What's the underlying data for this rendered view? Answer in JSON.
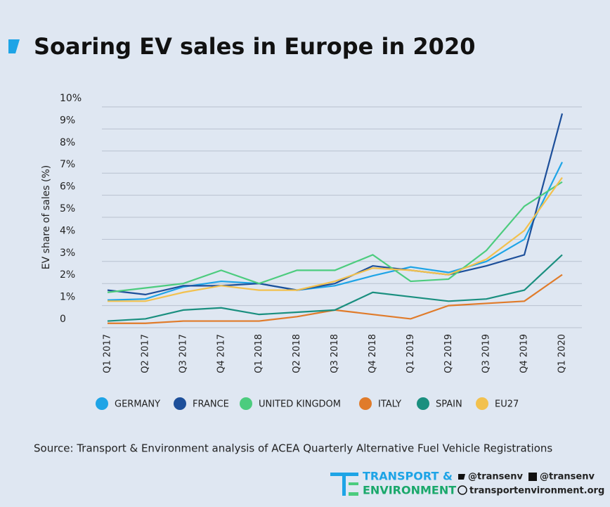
{
  "chart_data": {
    "type": "line",
    "title": "Soaring EV sales in Europe in 2020",
    "y_label": "EV share of sales (%)",
    "categories": [
      "Q1 2017",
      "Q2 2017",
      "Q3 2017",
      "Q4 2017",
      "Q1 2018",
      "Q2 2018",
      "Q3 2018",
      "Q4 2018",
      "Q1 2019",
      "Q2 2019",
      "Q3 2019",
      "Q4 2019",
      "Q1 2020"
    ],
    "series": [
      {
        "name": "GERMANY",
        "color": "#1ea4e6",
        "values": [
          1.25,
          1.3,
          1.85,
          2.1,
          2.0,
          1.7,
          1.9,
          2.35,
          2.75,
          2.5,
          3.0,
          4.0,
          7.5
        ]
      },
      {
        "name": "FRANCE",
        "color": "#1d4f9a",
        "values": [
          1.7,
          1.5,
          1.9,
          1.9,
          2.0,
          1.7,
          2.0,
          2.8,
          2.6,
          2.4,
          2.8,
          3.3,
          9.7
        ]
      },
      {
        "name": "UNITED KINGDOM",
        "color": "#4ccc7e",
        "values": [
          1.6,
          1.8,
          2.0,
          2.6,
          2.0,
          2.6,
          2.6,
          3.3,
          2.1,
          2.2,
          3.5,
          5.5,
          6.6
        ]
      },
      {
        "name": "ITALY",
        "color": "#e07b2a",
        "values": [
          0.2,
          0.2,
          0.3,
          0.3,
          0.3,
          0.5,
          0.8,
          0.6,
          0.4,
          1.0,
          1.1,
          1.2,
          2.4
        ]
      },
      {
        "name": "SPAIN",
        "color": "#1a8f7f",
        "values": [
          0.3,
          0.4,
          0.8,
          0.9,
          0.6,
          0.7,
          0.8,
          1.6,
          1.4,
          1.2,
          1.3,
          1.7,
          3.3
        ]
      },
      {
        "name": "EU27",
        "color": "#f2c14e",
        "values": [
          1.2,
          1.2,
          1.6,
          1.9,
          1.7,
          1.7,
          2.1,
          2.7,
          2.6,
          2.4,
          3.1,
          4.4,
          6.8
        ]
      }
    ],
    "ylim": [
      0,
      10
    ],
    "yticks": [
      0,
      {
        "value": 1,
        "label": "1%"
      },
      {
        "value": 2,
        "label": "2%"
      },
      {
        "value": 3,
        "label": "3%"
      },
      {
        "value": 4,
        "label": "4%"
      },
      {
        "value": 5,
        "label": "5%"
      },
      {
        "value": 6,
        "label": "6%"
      },
      {
        "value": 7,
        "label": "7%"
      },
      {
        "value": 8,
        "label": "8%"
      },
      {
        "value": 9,
        "label": "9%"
      },
      {
        "value": 10,
        "label": "10%"
      }
    ],
    "grid": true,
    "source": "Source: Transport & Environment analysis of ACEA Quarterly Alternative Fuel Vehicle Registrations"
  },
  "footer": {
    "logo_line1": "TRANSPORT &",
    "logo_line2": "ENVIRONMENT",
    "twitter": "@transenv",
    "facebook": "@transenv",
    "website": "transportenvironment.org"
  }
}
